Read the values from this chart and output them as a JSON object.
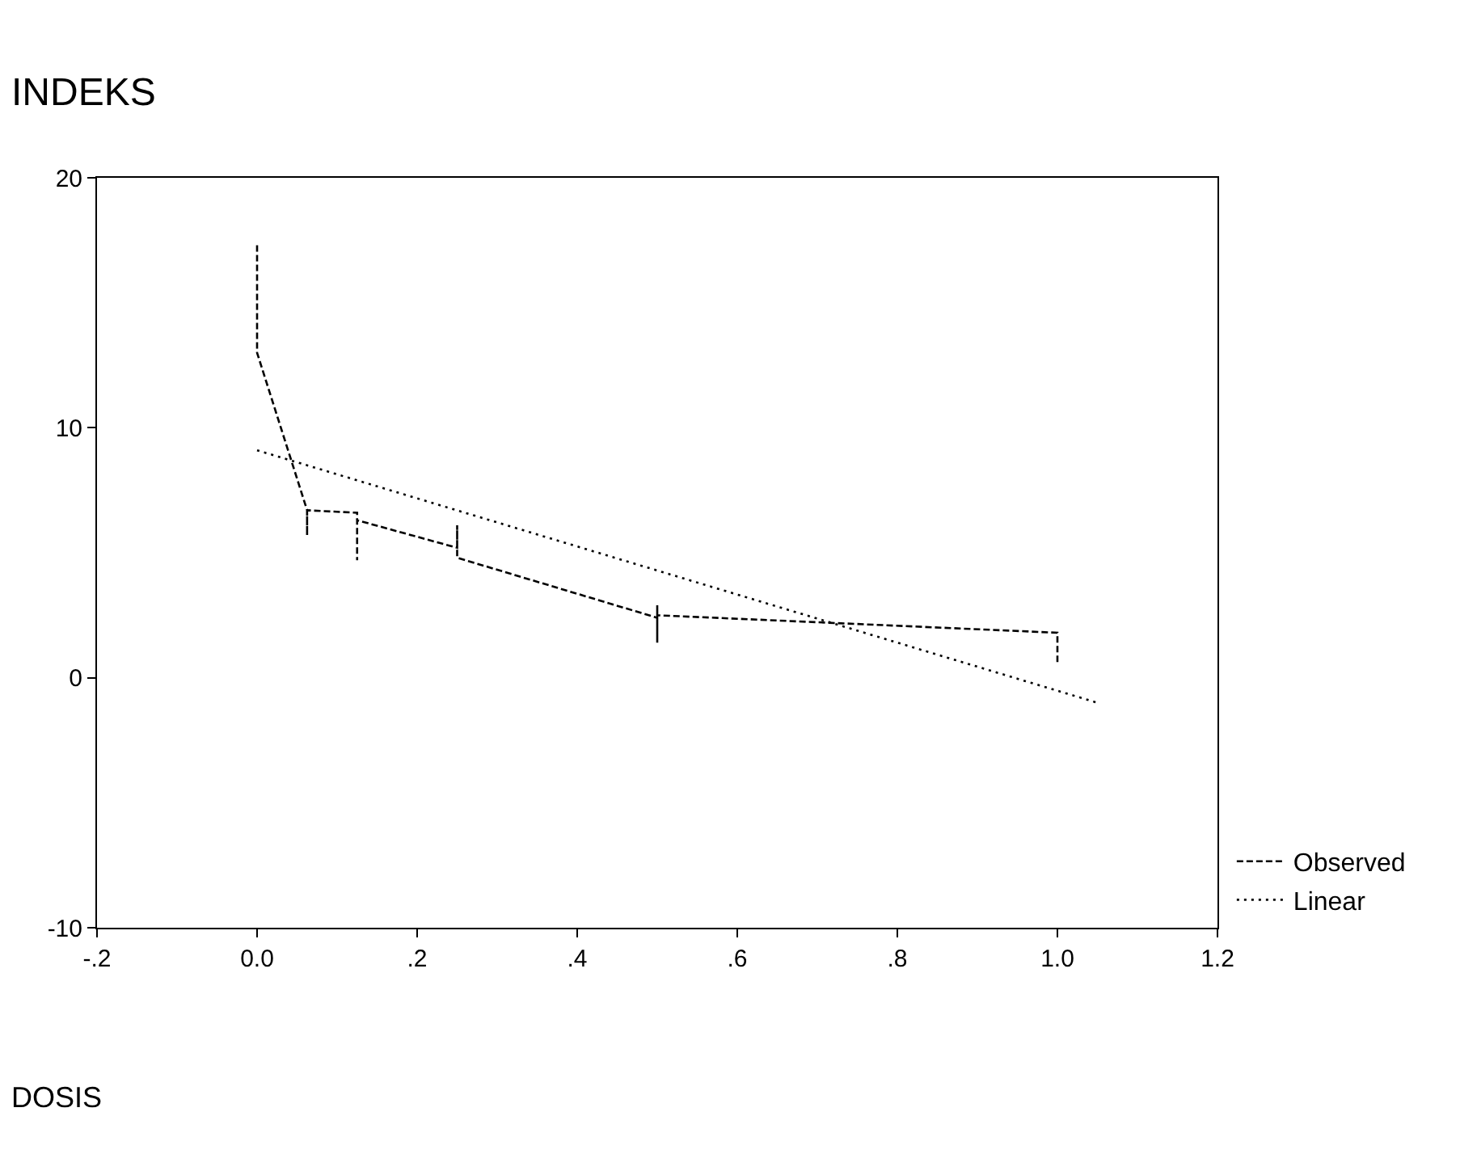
{
  "chart_data": {
    "type": "line",
    "xlabel": "DOSIS",
    "ylabel": "INDEKS",
    "xlim": [
      -0.2,
      1.2
    ],
    "ylim": [
      -10,
      20
    ],
    "xticks": [
      {
        "value": -0.2,
        "label": "-.2"
      },
      {
        "value": 0,
        "label": "0.0"
      },
      {
        "value": 0.2,
        "label": ".2"
      },
      {
        "value": 0.4,
        "label": ".4"
      },
      {
        "value": 0.6,
        "label": ".6"
      },
      {
        "value": 0.8,
        "label": ".8"
      },
      {
        "value": 1.0,
        "label": "1.0"
      },
      {
        "value": 1.2,
        "label": "1.2"
      }
    ],
    "yticks": [
      -10,
      0,
      10,
      20
    ],
    "series": [
      {
        "name": "Observed",
        "color": "#000000",
        "line_style": "dashed",
        "x": [
          0,
          0,
          0.0625,
          0.0625,
          0.0625,
          0.125,
          0.125,
          0.125,
          0.25,
          0.25,
          0.25,
          0.5,
          0.5,
          0.5,
          0.5,
          1.0,
          1.0
        ],
        "values": [
          17.3,
          13.0,
          6.7,
          5.7,
          6.7,
          6.6,
          4.7,
          6.3,
          5.2,
          6.1,
          4.8,
          2.4,
          2.9,
          1.4,
          2.5,
          1.8,
          0.6
        ]
      },
      {
        "name": "Linear",
        "color": "#000000",
        "line_style": "dotted",
        "x": [
          0,
          1.05
        ],
        "values": [
          9.1,
          -1.0
        ]
      }
    ],
    "marker": "none",
    "legend": "bottom right"
  }
}
